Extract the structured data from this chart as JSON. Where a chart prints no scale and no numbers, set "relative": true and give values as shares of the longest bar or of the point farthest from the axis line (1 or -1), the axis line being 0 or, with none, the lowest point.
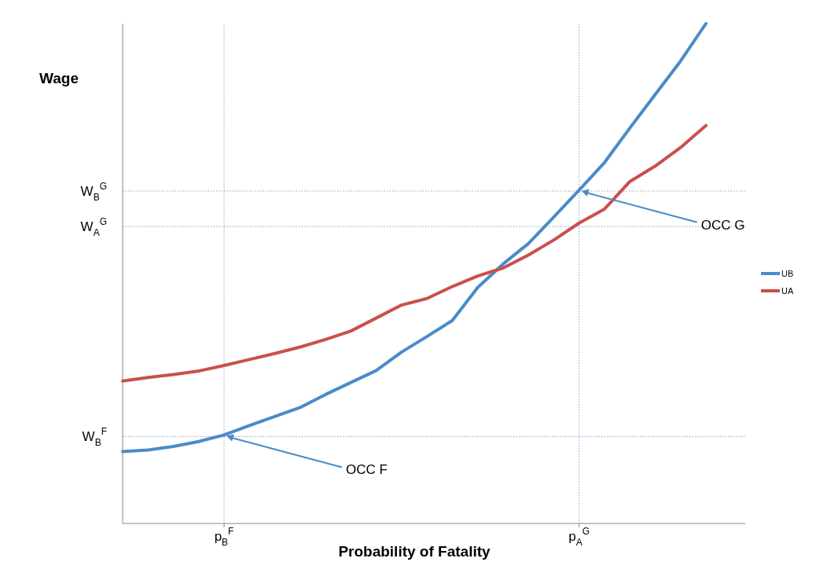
{
  "chart_data": {
    "type": "line",
    "relative": true,
    "xlabel": "Probability of Fatality",
    "ylabel": "Wage",
    "legend": "right",
    "categories": [
      null,
      null,
      null,
      null,
      "p$_{B}$$^{F}$",
      null,
      null,
      null,
      null,
      null,
      null,
      null,
      null,
      null,
      null,
      null,
      null,
      null,
      "p$_{A}$$^{G}$",
      null,
      null,
      null,
      null,
      null
    ],
    "series": [
      {
        "name": "UB",
        "color": "#4a8bc9",
        "values": [
          0.144,
          0.147,
          0.154,
          0.164,
          0.177,
          0.196,
          0.214,
          0.232,
          0.258,
          0.282,
          0.306,
          0.343,
          0.374,
          0.406,
          0.472,
          0.519,
          0.56,
          0.613,
          0.667,
          0.722,
          0.791,
          0.858,
          0.925,
          1
        ]
      },
      {
        "name": "UA",
        "color": "#c9504c",
        "values": [
          0.285,
          0.292,
          0.298,
          0.305,
          0.316,
          0.328,
          0.34,
          0.353,
          0.368,
          0.385,
          0.411,
          0.437,
          0.45,
          0.474,
          0.495,
          0.511,
          0.537,
          0.567,
          0.601,
          0.629,
          0.684,
          0.715,
          0.752,
          0.796
        ]
      }
    ],
    "ref_lines": [
      {
        "axis": "y",
        "value": 0.665,
        "label": "W$_{B}$$^{G}$",
        "color": "#7f9fc9",
        "line_style": "dotted"
      },
      {
        "axis": "y",
        "value": 0.594,
        "label": "W$_{A}$$^{G}$",
        "color": "#7f9fc9",
        "line_style": "dotted"
      },
      {
        "axis": "y",
        "value": 0.174,
        "label": "W$_{B}$$^{F}$",
        "color": "#7f9fc9",
        "line_style": "dotted"
      },
      {
        "axis": "x",
        "value": "p$_{B}$$^{F}$",
        "color": "#7f9fc9",
        "line_style": "dotted"
      },
      {
        "axis": "x",
        "value": "p$_{A}$$^{G}$",
        "color": "#7f9fc9",
        "line_style": "dotted"
      }
    ],
    "annotations": [
      {
        "text": "OCC G",
        "x": "p$_{A}$$^{G}$",
        "y": 0.667
      },
      {
        "text": "OCC F",
        "x": "p$_{B}$$^{F}$",
        "y": 0.177
      }
    ]
  }
}
